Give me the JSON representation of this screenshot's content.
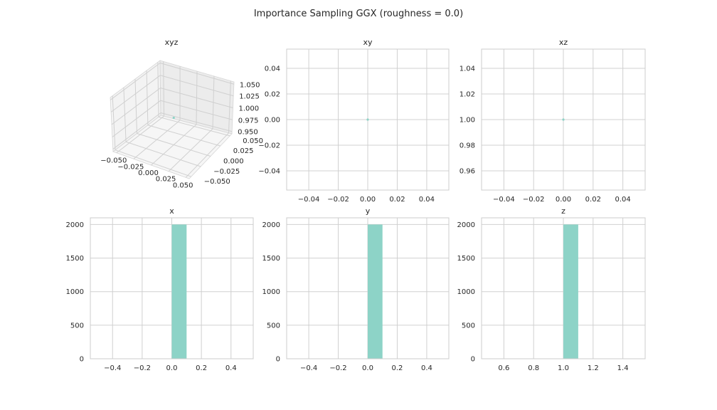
{
  "figure": {
    "title": "Importance Sampling GGX (roughness = 0.0)"
  },
  "colors": {
    "series": "#8dd3c7",
    "grid": "#d0d0d0",
    "frame": "#cccccc",
    "text": "#262626",
    "pane": "#f2f2f2"
  },
  "chart_data": [
    {
      "id": "xyz",
      "type": "scatter",
      "projection": "3d",
      "title": "xyz",
      "xlim": [
        -0.055,
        0.055
      ],
      "ylim": [
        -0.055,
        0.055
      ],
      "zlim": [
        0.945,
        1.055
      ],
      "xticks": [
        "−0.050",
        "−0.025",
        "0.000",
        "0.025",
        "0.050"
      ],
      "yticks": [
        "−0.050",
        "−0.025",
        "0.000",
        "0.025",
        "0.050"
      ],
      "zticks": [
        "0.950",
        "0.975",
        "1.000",
        "1.025",
        "1.050"
      ],
      "points": [
        [
          0.0,
          0.0,
          1.0
        ]
      ],
      "grid": true
    },
    {
      "id": "xy",
      "type": "scatter",
      "title": "xy",
      "xlim": [
        -0.055,
        0.055
      ],
      "ylim": [
        -0.055,
        0.055
      ],
      "xticks": [
        -0.04,
        -0.02,
        0.0,
        0.02,
        0.04
      ],
      "xtick_labels": [
        "−0.04",
        "−0.02",
        "0.00",
        "0.02",
        "0.04"
      ],
      "yticks": [
        -0.04,
        -0.02,
        0.0,
        0.02,
        0.04
      ],
      "ytick_labels": [
        "−0.04",
        "−0.02",
        "0.00",
        "0.02",
        "0.04"
      ],
      "points": [
        [
          0.0,
          0.0
        ]
      ],
      "grid": true
    },
    {
      "id": "xz",
      "type": "scatter",
      "title": "xz",
      "xlim": [
        -0.055,
        0.055
      ],
      "ylim": [
        0.945,
        1.055
      ],
      "xticks": [
        -0.04,
        -0.02,
        0.0,
        0.02,
        0.04
      ],
      "xtick_labels": [
        "−0.04",
        "−0.02",
        "0.00",
        "0.02",
        "0.04"
      ],
      "yticks": [
        0.96,
        0.98,
        1.0,
        1.02,
        1.04
      ],
      "ytick_labels": [
        "0.96",
        "0.98",
        "1.00",
        "1.02",
        "1.04"
      ],
      "points": [
        [
          0.0,
          1.0
        ]
      ],
      "grid": true
    },
    {
      "id": "x",
      "type": "bar",
      "title": "x",
      "xlim": [
        -0.55,
        0.55
      ],
      "ylim": [
        0,
        2100
      ],
      "xticks": [
        -0.4,
        -0.2,
        0.0,
        0.2,
        0.4
      ],
      "xtick_labels": [
        "−0.4",
        "−0.2",
        "0.0",
        "0.2",
        "0.4"
      ],
      "yticks": [
        0,
        500,
        1000,
        1500,
        2000
      ],
      "ytick_labels": [
        "0",
        "500",
        "1000",
        "1500",
        "2000"
      ],
      "bars": [
        {
          "x0": 0.0,
          "x1": 0.1,
          "value": 2000
        }
      ],
      "grid": true
    },
    {
      "id": "y",
      "type": "bar",
      "title": "y",
      "xlim": [
        -0.55,
        0.55
      ],
      "ylim": [
        0,
        2100
      ],
      "xticks": [
        -0.4,
        -0.2,
        0.0,
        0.2,
        0.4
      ],
      "xtick_labels": [
        "−0.4",
        "−0.2",
        "0.0",
        "0.2",
        "0.4"
      ],
      "yticks": [
        0,
        500,
        1000,
        1500,
        2000
      ],
      "ytick_labels": [
        "0",
        "500",
        "1000",
        "1500",
        "2000"
      ],
      "bars": [
        {
          "x0": 0.0,
          "x1": 0.1,
          "value": 2000
        }
      ],
      "grid": true
    },
    {
      "id": "z",
      "type": "bar",
      "title": "z",
      "xlim": [
        0.45,
        1.55
      ],
      "ylim": [
        0,
        2100
      ],
      "xticks": [
        0.6,
        0.8,
        1.0,
        1.2,
        1.4
      ],
      "xtick_labels": [
        "0.6",
        "0.8",
        "1.0",
        "1.2",
        "1.4"
      ],
      "yticks": [
        0,
        500,
        1000,
        1500,
        2000
      ],
      "ytick_labels": [
        "0",
        "500",
        "1000",
        "1500",
        "2000"
      ],
      "bars": [
        {
          "x0": 1.0,
          "x1": 1.1,
          "value": 2000
        }
      ],
      "grid": true
    }
  ]
}
